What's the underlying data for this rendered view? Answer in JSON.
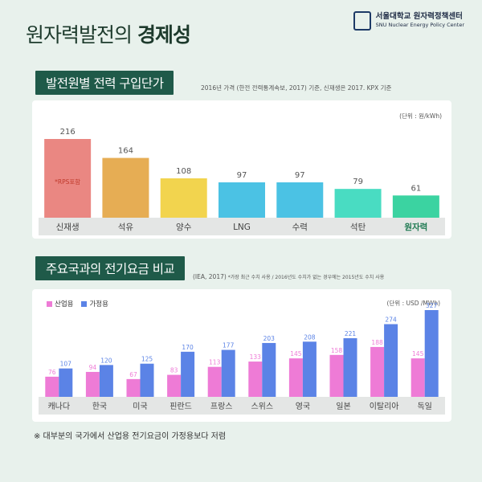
{
  "header": {
    "title_normal": "원자력발전의 ",
    "title_bold": "경제성",
    "logo_ko": "서울대학교 원자력정책센터",
    "logo_en": "SNU Nuclear Energy Policy Center"
  },
  "section1": {
    "title": "발전원별 전력 구입단가",
    "note": "2016년 가격 (한전 전력통계속보, 2017) 기준, 신재생은 2017. KPX 기준"
  },
  "section2": {
    "title": "주요국과의 전기요금 비교",
    "note_main": "(IEA, 2017)",
    "note_small": " *가장 최근 수치 사용 / 2016년도 수치가 없는 경우에는 2015년도 수치 사용"
  },
  "footnote": "※ 대부분의 국가에서 산업용 전기요금이 가정용보다 저렴",
  "colors": {
    "bg": "#e8f1ec",
    "header_green": "#1f5a49",
    "industrial": "#ee7bd6",
    "household": "#5b83e6"
  },
  "chart_data": [
    {
      "type": "bar",
      "unit": "(단위 : 원/kWh)",
      "categories": [
        "신재생",
        "석유",
        "양수",
        "LNG",
        "수력",
        "석탄",
        "원자력"
      ],
      "values": [
        216,
        164,
        108,
        97,
        97,
        79,
        61
      ],
      "bar_colors": [
        "#ea8782",
        "#e6ad54",
        "#f2d44e",
        "#4bc2e4",
        "#4bc2e4",
        "#49dcc2",
        "#3bd3a1"
      ],
      "highlight_category": "원자력",
      "annotation": "*RPS포함",
      "ylim": [
        0,
        230
      ]
    },
    {
      "type": "bar",
      "unit": "(단위 : USD /MWh)",
      "categories": [
        "캐나다",
        "한국",
        "미국",
        "핀란드",
        "프랑스",
        "스위스",
        "영국",
        "일본",
        "이탈리아",
        "독일"
      ],
      "series": [
        {
          "name": "산업용",
          "values": [
            76,
            94,
            67,
            83,
            113,
            133,
            145,
            158,
            188,
            145
          ]
        },
        {
          "name": "가정용",
          "values": [
            107,
            120,
            125,
            170,
            177,
            203,
            208,
            221,
            274,
            327
          ]
        }
      ],
      "ylim": [
        0,
        340
      ]
    }
  ]
}
